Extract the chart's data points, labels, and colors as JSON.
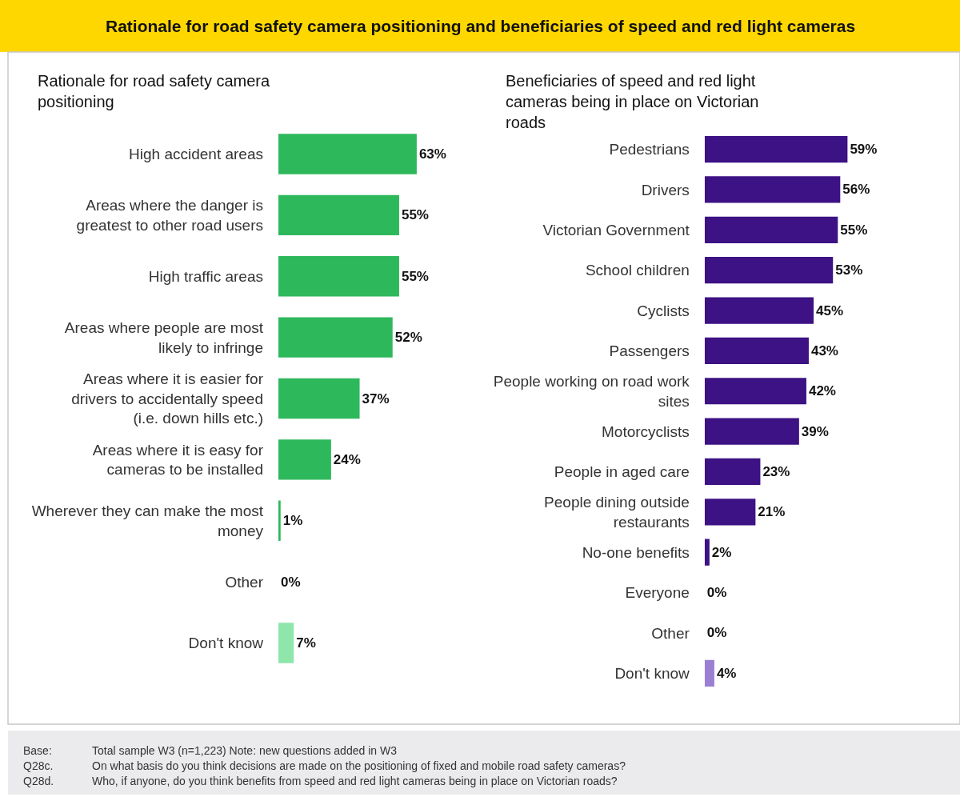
{
  "chart_data": [
    {
      "type": "bar",
      "orientation": "horizontal",
      "title": "Rationale for road safety camera positioning",
      "annotations": [
        "Rationale for road safety camera positioning and beneficiaries of speed and red light cameras"
      ],
      "categories": [
        "High accident areas",
        "Areas where the danger is greatest to other road users",
        "High traffic areas",
        "Areas where people are most likely to infringe",
        "Areas where it is easier for drivers to accidentally speed (i.e. down hills etc.)",
        "Areas where it is easy for cameras to be installed",
        "Wherever they can make the most money",
        "Other",
        "Don't know"
      ],
      "values": [
        63,
        55,
        55,
        52,
        37,
        24,
        1,
        0,
        7
      ],
      "value_labels": [
        "63%",
        "55%",
        "55%",
        "52%",
        "37%",
        "24%",
        "1%",
        "0%",
        "7%"
      ],
      "colors": [
        "#2eb85c",
        "#2eb85c",
        "#2eb85c",
        "#2eb85c",
        "#2eb85c",
        "#2eb85c",
        "#2eb85c",
        "#a8e6bd",
        "#8ee6ab"
      ]
    },
    {
      "type": "bar",
      "orientation": "horizontal",
      "title": "Beneficiaries of speed and red light cameras being in place on Victorian roads",
      "annotations": [
        "Base: Total sample W3 (n=1,223) Note: new questions added in W3",
        "Q28c. On what basis do you think decisions are made on the positioning of fixed and mobile road safety cameras?",
        "Q28d. Who, if anyone, do you think benefits from speed and red light cameras being in place on Victorian roads?"
      ],
      "categories": [
        "Pedestrians",
        "Drivers",
        "Victorian Government",
        "School children",
        "Cyclists",
        "Passengers",
        "People working on road work sites",
        "Motorcyclists",
        "People in aged care",
        "People dining outside restaurants",
        "No-one benefits",
        "Everyone",
        "Other",
        "Don't know"
      ],
      "values": [
        59,
        56,
        55,
        53,
        45,
        43,
        42,
        39,
        23,
        21,
        2,
        0,
        0,
        4
      ],
      "value_labels": [
        "59%",
        "56%",
        "55%",
        "53%",
        "45%",
        "43%",
        "42%",
        "39%",
        "23%",
        "21%",
        "2%",
        "0%",
        "0%",
        "4%"
      ],
      "colors": [
        "#3d1284",
        "#3d1284",
        "#3d1284",
        "#3d1284",
        "#3d1284",
        "#3d1284",
        "#3d1284",
        "#3d1284",
        "#3d1284",
        "#3d1284",
        "#3d1284",
        "#c4b3e0",
        "#c4b3e0",
        "#9a7fd3"
      ]
    }
  ]
}
